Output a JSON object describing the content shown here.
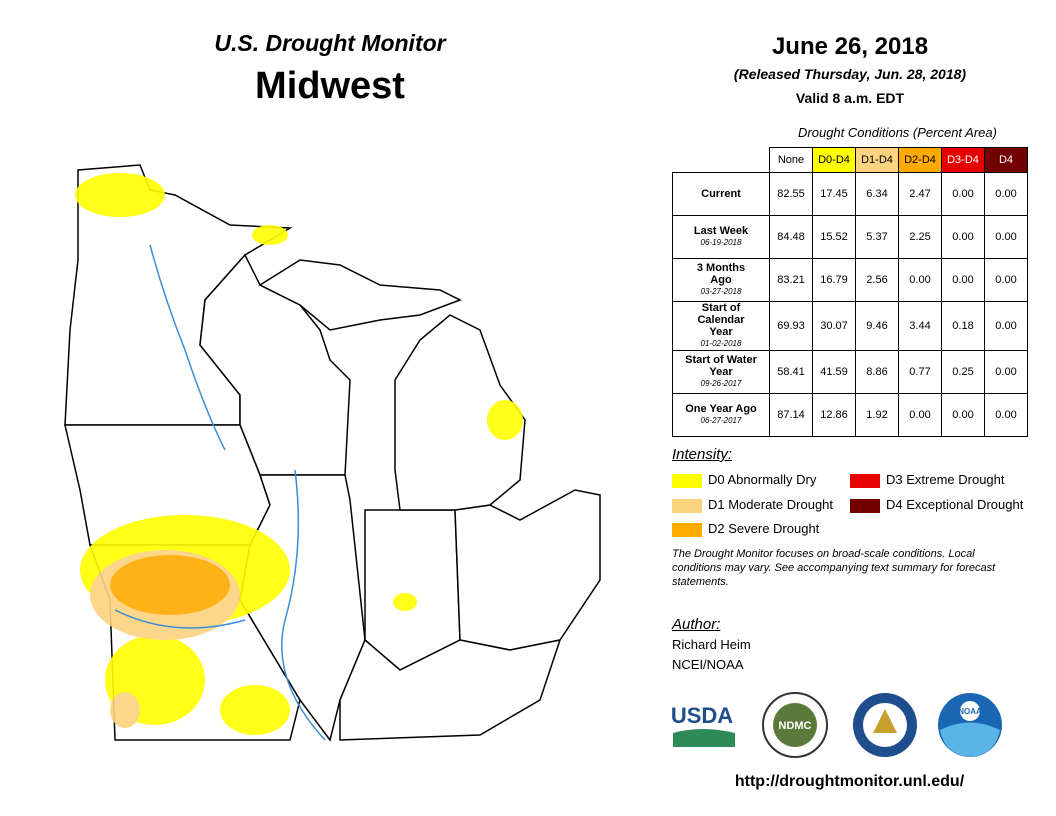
{
  "header": {
    "title": "U.S. Drought Monitor",
    "region": "Midwest",
    "date": "June 26, 2018",
    "released": "(Released Thursday, Jun. 28, 2018)",
    "valid": "Valid 8 a.m. EDT"
  },
  "table": {
    "caption": "Drought Conditions (Percent Area)",
    "columns": [
      {
        "label": "None",
        "color": "#ffffff",
        "text_color": "#000000"
      },
      {
        "label": "D0-D4",
        "color": "#ffff00",
        "text_color": "#000000"
      },
      {
        "label": "D1-D4",
        "color": "#fcd37f",
        "text_color": "#000000"
      },
      {
        "label": "D2-D4",
        "color": "#ffaa00",
        "text_color": "#000000"
      },
      {
        "label": "D3-D4",
        "color": "#e60000",
        "text_color": "#ffffff"
      },
      {
        "label": "D4",
        "color": "#730000",
        "text_color": "#ffffff"
      }
    ],
    "rows": [
      {
        "label": "Current",
        "values": [
          "82.55",
          "17.45",
          "6.34",
          "2.47",
          "0.00",
          "0.00"
        ]
      },
      {
        "label": "Last Week",
        "date": "06-19-2018",
        "values": [
          "84.48",
          "15.52",
          "5.37",
          "2.25",
          "0.00",
          "0.00"
        ]
      },
      {
        "label": "3 Months Ago",
        "date": "03-27-2018",
        "values": [
          "83.21",
          "16.79",
          "2.56",
          "0.00",
          "0.00",
          "0.00"
        ]
      },
      {
        "label": "Start of Calendar Year",
        "date": "01-02-2018",
        "values": [
          "69.93",
          "30.07",
          "9.46",
          "3.44",
          "0.18",
          "0.00"
        ]
      },
      {
        "label": "Start of Water Year",
        "date": "09-26-2017",
        "values": [
          "58.41",
          "41.59",
          "8.86",
          "0.77",
          "0.25",
          "0.00"
        ]
      },
      {
        "label": "One Year Ago",
        "date": "06-27-2017",
        "values": [
          "87.14",
          "12.86",
          "1.92",
          "0.00",
          "0.00",
          "0.00"
        ]
      }
    ]
  },
  "legend": {
    "title": "Intensity:",
    "items": [
      {
        "label": "D0 Abnormally Dry",
        "color": "#ffff00"
      },
      {
        "label": "D1 Moderate Drought",
        "color": "#fcd37f"
      },
      {
        "label": "D2 Severe Drought",
        "color": "#ffaa00"
      },
      {
        "label": "D3 Extreme Drought",
        "color": "#e60000"
      },
      {
        "label": "D4 Exceptional Drought",
        "color": "#730000"
      }
    ]
  },
  "note": "The Drought Monitor focuses on broad-scale conditions. Local conditions may vary. See accompanying text summary for forecast statements.",
  "author": {
    "title": "Author:",
    "name": "Richard Heim",
    "org": "NCEI/NOAA"
  },
  "logos": [
    "USDA",
    "NDMC",
    "NOAA"
  ],
  "url": "http://droughtmonitor.unl.edu/"
}
